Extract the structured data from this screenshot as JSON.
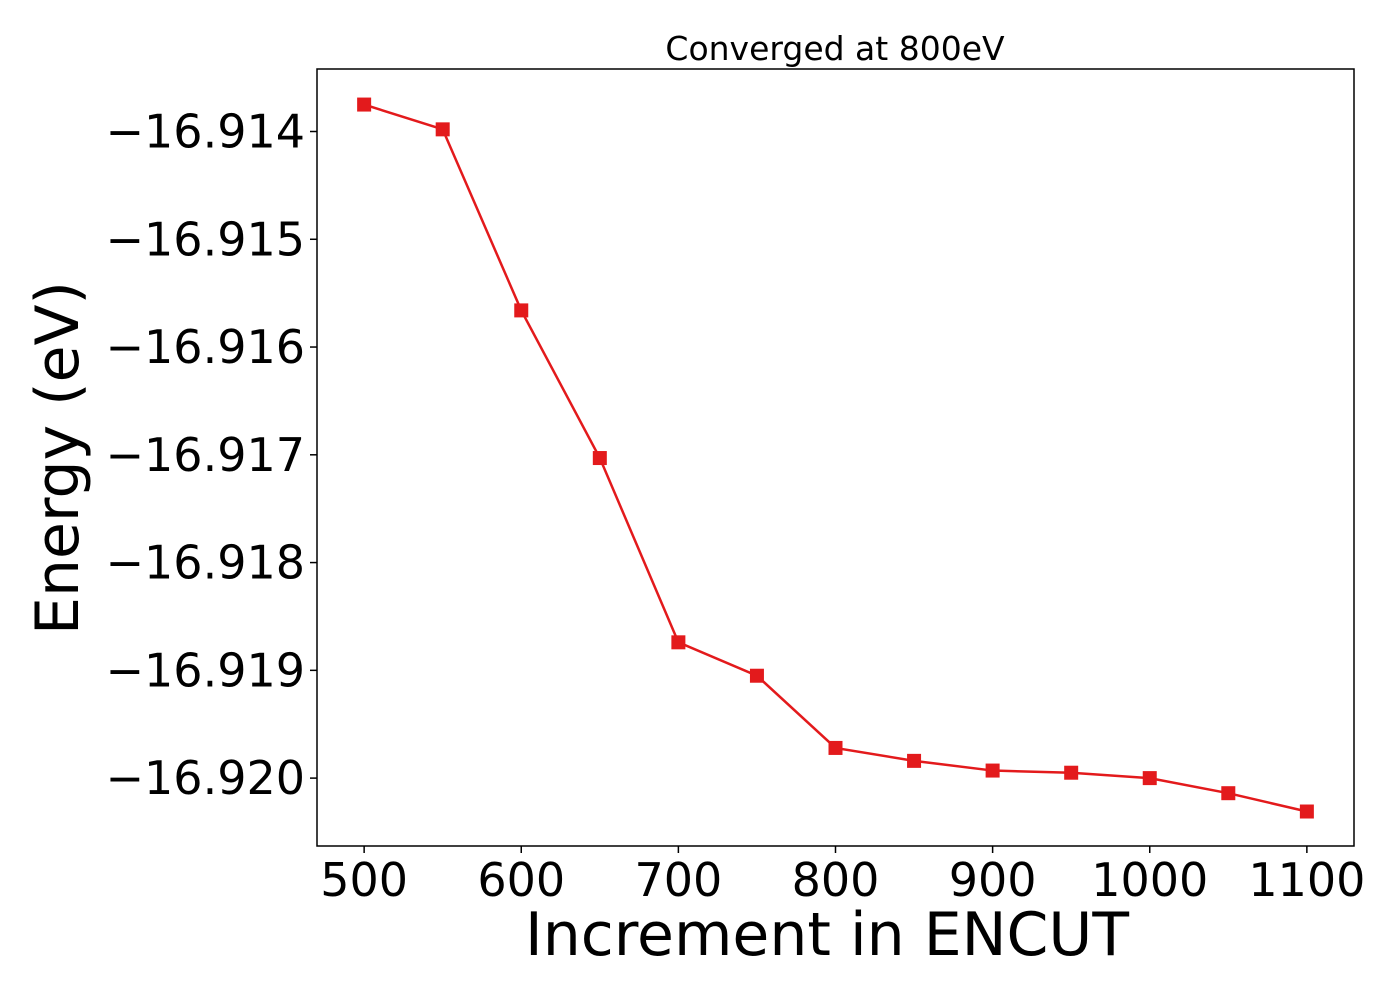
{
  "chart_data": {
    "type": "line",
    "title": "Converged at 800eV",
    "xlabel": "Increment in ENCUT",
    "ylabel": "Energy (eV)",
    "x": [
      500,
      550,
      600,
      650,
      700,
      750,
      800,
      850,
      900,
      950,
      1000,
      1050,
      1100
    ],
    "series": [
      {
        "values": [
          -16.91375,
          -16.91398,
          -16.91566,
          -16.91703,
          -16.91874,
          -16.91905,
          -16.91972,
          -16.91984,
          -16.91993,
          -16.91995,
          -16.92,
          -16.92014,
          -16.92031
        ],
        "color": "#e31a1c",
        "marker": "square"
      }
    ],
    "xlim": [
      470,
      1130
    ],
    "ylim": [
      -16.92063,
      -16.91342
    ],
    "xticks": [
      500,
      600,
      700,
      800,
      900,
      1000,
      1100
    ],
    "xtick_labels": [
      "500",
      "600",
      "700",
      "800",
      "900",
      "1000",
      "1100"
    ],
    "yticks": [
      -16.914,
      -16.915,
      -16.916,
      -16.917,
      -16.918,
      -16.919,
      -16.92
    ],
    "ytick_labels": [
      "−16.914",
      "−16.915",
      "−16.916",
      "−16.917",
      "−16.918",
      "−16.919",
      "−16.920"
    ],
    "grid": false,
    "legend": "none"
  }
}
